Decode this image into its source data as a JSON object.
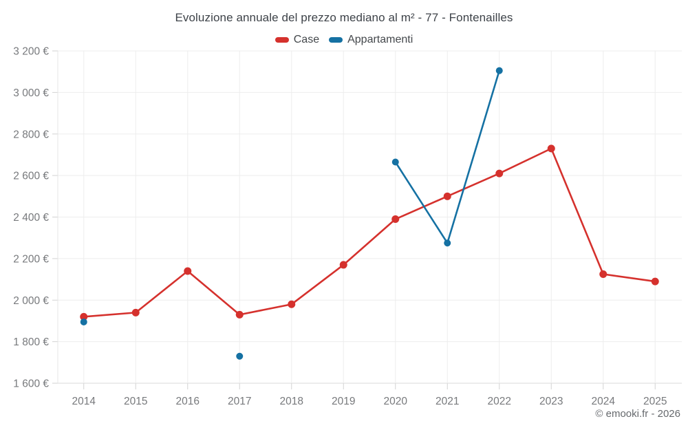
{
  "header": {
    "title": "Evoluzione annuale del prezzo mediano al m² - 77 - Fontenailles"
  },
  "legend": {
    "items": [
      {
        "label": "Case",
        "color": "#d5312d"
      },
      {
        "label": "Appartamenti",
        "color": "#1571a3"
      }
    ]
  },
  "footer": {
    "credit": "© emooki.fr - 2026"
  },
  "chart_data": {
    "type": "line",
    "title": "Evoluzione annuale del prezzo mediano al m² - 77 - Fontenailles",
    "categories": [
      "2014",
      "2015",
      "2016",
      "2017",
      "2018",
      "2019",
      "2020",
      "2021",
      "2022",
      "2023",
      "2024",
      "2025"
    ],
    "series": [
      {
        "name": "Case",
        "color": "#d5312d",
        "marker_radius": 5.5,
        "values": [
          1920,
          1940,
          2140,
          1930,
          1980,
          2170,
          2390,
          2500,
          2610,
          2730,
          2125,
          2090
        ]
      },
      {
        "name": "Appartamenti",
        "color": "#1571a3",
        "marker_radius": 5,
        "values": [
          1895,
          null,
          null,
          1730,
          null,
          null,
          2665,
          2275,
          3105,
          null,
          null,
          null
        ]
      }
    ],
    "xlabel": "",
    "ylabel": "",
    "ylim": [
      1600,
      3200
    ],
    "ytick_step": 200,
    "ytick_labels": [
      "1 600 €",
      "1 800 €",
      "2 000 €",
      "2 200 €",
      "2 400 €",
      "2 600 €",
      "2 800 €",
      "3 000 €",
      "3 200 €"
    ],
    "currency_suffix": "€",
    "grid": true,
    "legend_position": "top",
    "colors": {
      "gridline": "#ededed",
      "axis_line": "#d9d9d9",
      "tick": "#d2d2d2",
      "tick_label": "#77797c"
    }
  }
}
